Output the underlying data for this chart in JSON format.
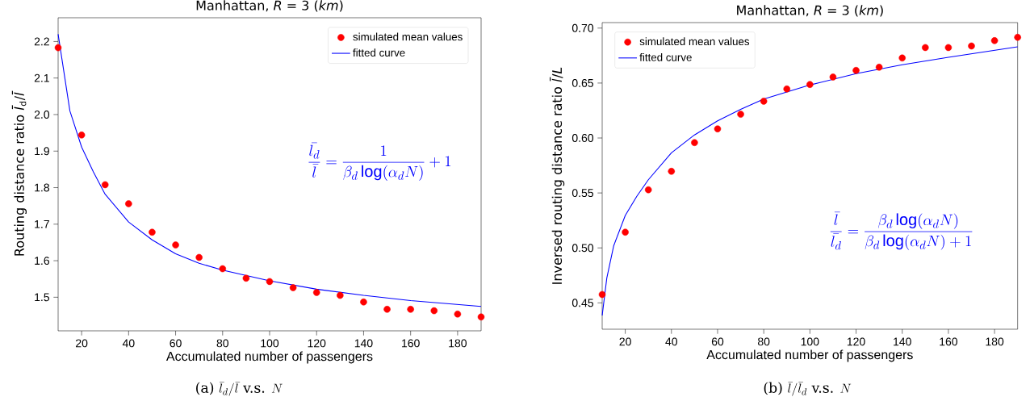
{
  "chart_data": [
    {
      "type": "scatter",
      "title": "Manhattan, *R* = 3 (*km*)",
      "xlabel": "Accumulated number of passengers",
      "ylabel": "Routing distance ratio *l̄*$_{d}$/*l̄*",
      "annotations": [
        "\\frac{\\bar{l_d}}{\\bar{l}} = \\frac{1}{\\beta_d \\log(\\alpha_d N)} + 1",
        "\\text{(a) }\\bar{l}_d/\\bar{l}\\text{ v.s. }N"
      ],
      "series": [
        {
          "name": "simulated mean values",
          "color": "#ff0000",
          "x": [
            10,
            20,
            30,
            40,
            50,
            60,
            70,
            80,
            90,
            100,
            110,
            120,
            130,
            140,
            150,
            160,
            170,
            180,
            190
          ],
          "values": [
            2.183,
            1.944,
            1.808,
            1.756,
            1.678,
            1.643,
            1.609,
            1.578,
            1.552,
            1.543,
            1.526,
            1.513,
            1.505,
            1.487,
            1.467,
            1.467,
            1.463,
            1.454,
            1.446
          ]
        },
        {
          "name": "fitted curve",
          "type": "line",
          "color": "#0000ff",
          "line_style": "solid",
          "marker": "none",
          "x": [
            10,
            15,
            20,
            25,
            30,
            40,
            50,
            60,
            70,
            80,
            100,
            120,
            140,
            160,
            190
          ],
          "values": [
            2.22,
            2.01,
            1.911,
            1.843,
            1.782,
            1.706,
            1.657,
            1.619,
            1.593,
            1.574,
            1.545,
            1.522,
            1.505,
            1.491,
            1.475
          ]
        }
      ],
      "xlim": [
        10,
        190
      ],
      "ylim": [
        1.408,
        2.265
      ],
      "xticks": [
        20,
        40,
        60,
        80,
        100,
        120,
        140,
        160,
        180
      ],
      "yticks": [
        {
          "value": 1.5,
          "label": "1.5"
        },
        {
          "value": 1.6,
          "label": "1.6"
        },
        {
          "value": 1.7,
          "label": "1.7"
        },
        {
          "value": 1.8,
          "label": "1.8"
        },
        {
          "value": 1.9,
          "label": "1.9"
        },
        {
          "value": 2.0,
          "label": "2.0"
        },
        {
          "value": 2.1,
          "label": "2.1"
        },
        {
          "value": 2.2,
          "label": "2.2"
        }
      ],
      "legend": "top right",
      "grid": false,
      "marker": "circle"
    },
    {
      "type": "scatter",
      "title": "Manhattan, *R* = 3 (*km*)",
      "xlabel": "Accumulated number of passengers",
      "ylabel": "Inversed routing distance ratio *l̄*/*L*",
      "annotations": [
        "\\frac{\\bar{l}}{\\bar{l_d}} = \\frac{\\beta_d \\log(\\alpha_d N)}{\\beta_d \\log(\\alpha_d N) + 1}",
        "\\text{(b) }\\bar{l}/\\bar{l}_d\\text{ v.s. }N"
      ],
      "series": [
        {
          "name": "simulated mean values",
          "color": "#ff0000",
          "x": [
            10,
            20,
            30,
            40,
            50,
            60,
            70,
            80,
            90,
            100,
            110,
            120,
            130,
            140,
            150,
            160,
            170,
            180,
            190
          ],
          "values": [
            0.4576,
            0.5143,
            0.5529,
            0.5697,
            0.5958,
            0.6083,
            0.6216,
            0.6335,
            0.6446,
            0.6487,
            0.6555,
            0.6615,
            0.6644,
            0.6728,
            0.6823,
            0.6823,
            0.6837,
            0.6886,
            0.6916
          ]
        },
        {
          "name": "fitted curve",
          "type": "line",
          "color": "#0000ff",
          "line_style": "solid",
          "marker": "none",
          "x": [
            10,
            12,
            15,
            20,
            25,
            30,
            40,
            50,
            60,
            70,
            80,
            100,
            120,
            140,
            160,
            190
          ],
          "values": [
            0.4386,
            0.4725,
            0.502,
            0.5295,
            0.547,
            0.562,
            0.5865,
            0.6028,
            0.6156,
            0.626,
            0.6354,
            0.6482,
            0.6585,
            0.6666,
            0.6734,
            0.6829
          ]
        }
      ],
      "xlim": [
        10,
        190
      ],
      "ylim": [
        0.426,
        0.705
      ],
      "xticks": [
        20,
        40,
        60,
        80,
        100,
        120,
        140,
        160,
        180
      ],
      "yticks": [
        {
          "value": 0.45,
          "label": "0.45"
        },
        {
          "value": 0.5,
          "label": "0.50"
        },
        {
          "value": 0.55,
          "label": "0.55"
        },
        {
          "value": 0.6,
          "label": "0.60"
        },
        {
          "value": 0.65,
          "label": "0.65"
        },
        {
          "value": 0.7,
          "label": "0.70"
        }
      ],
      "legend": "top left",
      "grid": false,
      "marker": "circle"
    }
  ]
}
